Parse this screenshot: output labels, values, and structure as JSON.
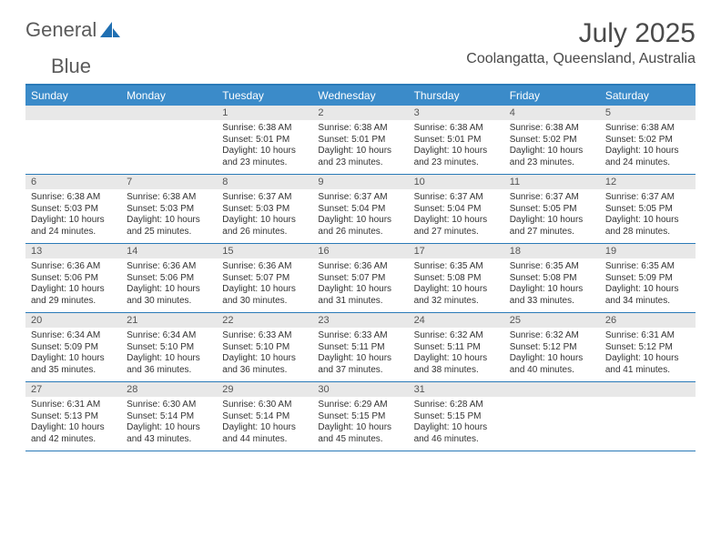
{
  "brand": {
    "word1": "General",
    "word2": "Blue"
  },
  "title": "July 2025",
  "subtitle": "Coolangatta, Queensland, Australia",
  "colors": {
    "header_bg": "#3b8bc9",
    "header_text": "#ffffff",
    "rule": "#2a7ab8",
    "daynum_bg": "#e8e8e8",
    "text": "#333333",
    "title_text": "#4a4a4a"
  },
  "day_names": [
    "Sunday",
    "Monday",
    "Tuesday",
    "Wednesday",
    "Thursday",
    "Friday",
    "Saturday"
  ],
  "weeks": [
    [
      {
        "n": "",
        "sr": "",
        "ss": "",
        "dl": ""
      },
      {
        "n": "",
        "sr": "",
        "ss": "",
        "dl": ""
      },
      {
        "n": "1",
        "sr": "6:38 AM",
        "ss": "5:01 PM",
        "dl": "10 hours and 23 minutes."
      },
      {
        "n": "2",
        "sr": "6:38 AM",
        "ss": "5:01 PM",
        "dl": "10 hours and 23 minutes."
      },
      {
        "n": "3",
        "sr": "6:38 AM",
        "ss": "5:01 PM",
        "dl": "10 hours and 23 minutes."
      },
      {
        "n": "4",
        "sr": "6:38 AM",
        "ss": "5:02 PM",
        "dl": "10 hours and 23 minutes."
      },
      {
        "n": "5",
        "sr": "6:38 AM",
        "ss": "5:02 PM",
        "dl": "10 hours and 24 minutes."
      }
    ],
    [
      {
        "n": "6",
        "sr": "6:38 AM",
        "ss": "5:03 PM",
        "dl": "10 hours and 24 minutes."
      },
      {
        "n": "7",
        "sr": "6:38 AM",
        "ss": "5:03 PM",
        "dl": "10 hours and 25 minutes."
      },
      {
        "n": "8",
        "sr": "6:37 AM",
        "ss": "5:03 PM",
        "dl": "10 hours and 26 minutes."
      },
      {
        "n": "9",
        "sr": "6:37 AM",
        "ss": "5:04 PM",
        "dl": "10 hours and 26 minutes."
      },
      {
        "n": "10",
        "sr": "6:37 AM",
        "ss": "5:04 PM",
        "dl": "10 hours and 27 minutes."
      },
      {
        "n": "11",
        "sr": "6:37 AM",
        "ss": "5:05 PM",
        "dl": "10 hours and 27 minutes."
      },
      {
        "n": "12",
        "sr": "6:37 AM",
        "ss": "5:05 PM",
        "dl": "10 hours and 28 minutes."
      }
    ],
    [
      {
        "n": "13",
        "sr": "6:36 AM",
        "ss": "5:06 PM",
        "dl": "10 hours and 29 minutes."
      },
      {
        "n": "14",
        "sr": "6:36 AM",
        "ss": "5:06 PM",
        "dl": "10 hours and 30 minutes."
      },
      {
        "n": "15",
        "sr": "6:36 AM",
        "ss": "5:07 PM",
        "dl": "10 hours and 30 minutes."
      },
      {
        "n": "16",
        "sr": "6:36 AM",
        "ss": "5:07 PM",
        "dl": "10 hours and 31 minutes."
      },
      {
        "n": "17",
        "sr": "6:35 AM",
        "ss": "5:08 PM",
        "dl": "10 hours and 32 minutes."
      },
      {
        "n": "18",
        "sr": "6:35 AM",
        "ss": "5:08 PM",
        "dl": "10 hours and 33 minutes."
      },
      {
        "n": "19",
        "sr": "6:35 AM",
        "ss": "5:09 PM",
        "dl": "10 hours and 34 minutes."
      }
    ],
    [
      {
        "n": "20",
        "sr": "6:34 AM",
        "ss": "5:09 PM",
        "dl": "10 hours and 35 minutes."
      },
      {
        "n": "21",
        "sr": "6:34 AM",
        "ss": "5:10 PM",
        "dl": "10 hours and 36 minutes."
      },
      {
        "n": "22",
        "sr": "6:33 AM",
        "ss": "5:10 PM",
        "dl": "10 hours and 36 minutes."
      },
      {
        "n": "23",
        "sr": "6:33 AM",
        "ss": "5:11 PM",
        "dl": "10 hours and 37 minutes."
      },
      {
        "n": "24",
        "sr": "6:32 AM",
        "ss": "5:11 PM",
        "dl": "10 hours and 38 minutes."
      },
      {
        "n": "25",
        "sr": "6:32 AM",
        "ss": "5:12 PM",
        "dl": "10 hours and 40 minutes."
      },
      {
        "n": "26",
        "sr": "6:31 AM",
        "ss": "5:12 PM",
        "dl": "10 hours and 41 minutes."
      }
    ],
    [
      {
        "n": "27",
        "sr": "6:31 AM",
        "ss": "5:13 PM",
        "dl": "10 hours and 42 minutes."
      },
      {
        "n": "28",
        "sr": "6:30 AM",
        "ss": "5:14 PM",
        "dl": "10 hours and 43 minutes."
      },
      {
        "n": "29",
        "sr": "6:30 AM",
        "ss": "5:14 PM",
        "dl": "10 hours and 44 minutes."
      },
      {
        "n": "30",
        "sr": "6:29 AM",
        "ss": "5:15 PM",
        "dl": "10 hours and 45 minutes."
      },
      {
        "n": "31",
        "sr": "6:28 AM",
        "ss": "5:15 PM",
        "dl": "10 hours and 46 minutes."
      },
      {
        "n": "",
        "sr": "",
        "ss": "",
        "dl": ""
      },
      {
        "n": "",
        "sr": "",
        "ss": "",
        "dl": ""
      }
    ]
  ],
  "labels": {
    "sunrise": "Sunrise: ",
    "sunset": "Sunset: ",
    "daylight": "Daylight: "
  }
}
